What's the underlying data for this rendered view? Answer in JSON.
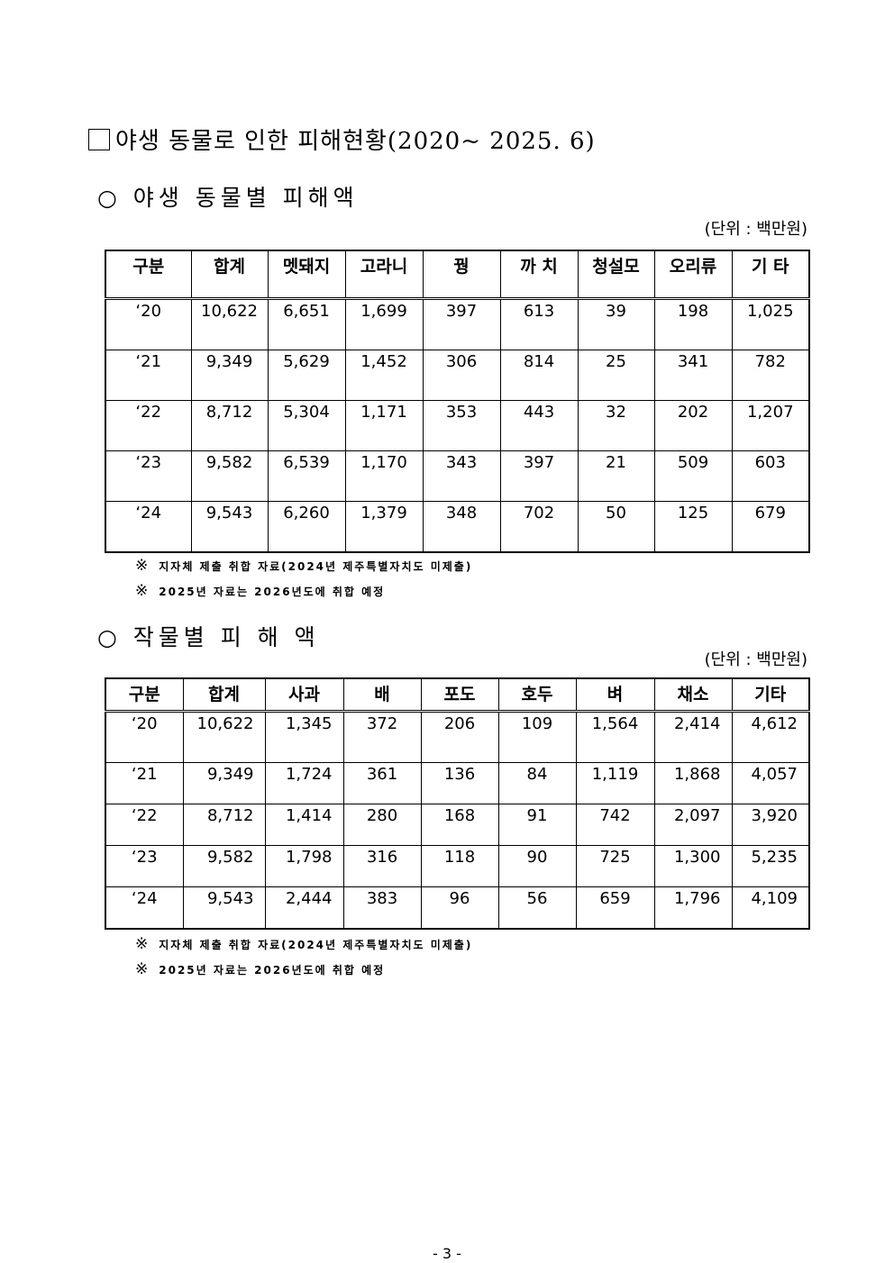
{
  "title": "야생 동물로 인한 피해현황(2020~ 2025. 6)",
  "section1": {
    "heading": "○  야생 동물별  피해액",
    "unit": "(단위 : 백만원)",
    "headers": [
      "구분",
      "합계",
      "멧돼지",
      "고라니",
      "꿩",
      "까 치",
      "청설모",
      "오리류",
      "기 타"
    ],
    "rows": [
      [
        "‘20",
        "10,622",
        "6,651",
        "1,699",
        "397",
        "613",
        "39",
        "198",
        "1,025"
      ],
      [
        "‘21",
        "9,349",
        "5,629",
        "1,452",
        "306",
        "814",
        "25",
        "341",
        "782"
      ],
      [
        "‘22",
        "8,712",
        "5,304",
        "1,171",
        "353",
        "443",
        "32",
        "202",
        "1,207"
      ],
      [
        "‘23",
        "9,582",
        "6,539",
        "1,170",
        "343",
        "397",
        "21",
        "509",
        "603"
      ],
      [
        "‘24",
        "9,543",
        "6,260",
        "1,379",
        "348",
        "702",
        "50",
        "125",
        "679"
      ]
    ],
    "notes": [
      "지자체 제출 취합 자료(2024년 제주특별자치도 미제출)",
      "2025년 자료는 2026년도에 취합 예정"
    ]
  },
  "section2": {
    "heading": "○  작물별  피 해 액",
    "unit": "(단위 : 백만원)",
    "headers": [
      "구분",
      "합계",
      "사과",
      "배",
      "포도",
      "호두",
      "벼",
      "채소",
      "기타"
    ],
    "rows": [
      [
        "‘20",
        "10,622",
        "1,345",
        "372",
        "206",
        "109",
        "1,564",
        "2,414",
        "4,612"
      ],
      [
        "‘21",
        "9,349",
        "1,724",
        "361",
        "136",
        "84",
        "1,119",
        "1,868",
        "4,057"
      ],
      [
        "‘22",
        "8,712",
        "1,414",
        "280",
        "168",
        "91",
        "742",
        "2,097",
        "3,920"
      ],
      [
        "‘23",
        "9,582",
        "1,798",
        "316",
        "118",
        "90",
        "725",
        "1,300",
        "5,235"
      ],
      [
        "‘24",
        "9,543",
        "2,444",
        "383",
        "96",
        "56",
        "659",
        "1,796",
        "4,109"
      ]
    ],
    "notes": [
      "지자체 제출 취합 자료(2024년 제주특별자치도 미제출)",
      "2025년 자료는 2026년도에 취합 예정"
    ]
  },
  "note_mark": "※",
  "page_number": "- 3 -"
}
